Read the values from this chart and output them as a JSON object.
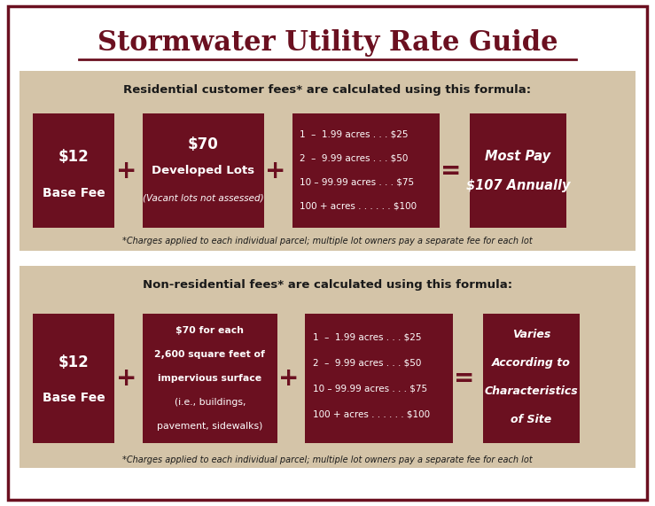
{
  "title": "Stormwater Utility Rate Guide",
  "title_color": "#6B1020",
  "bg_color": "#FFFFFF",
  "outer_border_color": "#6B1020",
  "panel_bg": "#D4C4A8",
  "dark_red": "#6B1020",
  "white": "#FFFFFF",
  "dark_text": "#1A1A1A",
  "res_header": "Residential customer fees* are calculated using this formula:",
  "nonres_header": "Non-residential fees* are calculated using this formula:",
  "footnote": "*Charges applied to each individual parcel; multiple lot owners pay a separate fee for each lot",
  "base_fee_line1": "$12",
  "base_fee_line2": "Base Fee",
  "res_box2_line1": "$70",
  "res_box2_line2": "Developed Lots",
  "res_box2_line3": "(Vacant lots not assessed)",
  "acres_lines": [
    "1  –  1.99 acres . . . $25",
    "2  –  9.99 acres . . . $50",
    "10 – 99.99 acres . . . $75",
    "100 + acres . . . . . . $100"
  ],
  "res_result_line1": "Most Pay",
  "res_result_line2": "$107 Annually",
  "nonres_box2_line1": "$70 for each",
  "nonres_box2_line2": "2,600 square feet of",
  "nonres_box2_line3": "impervious surface",
  "nonres_box2_line4": "(i.e., buildings,",
  "nonres_box2_line5": "pavement, sidewalks)",
  "nonres_result_line1": "Varies",
  "nonres_result_line2": "According to",
  "nonres_result_line3": "Characteristics",
  "nonres_result_line4": "of Site"
}
